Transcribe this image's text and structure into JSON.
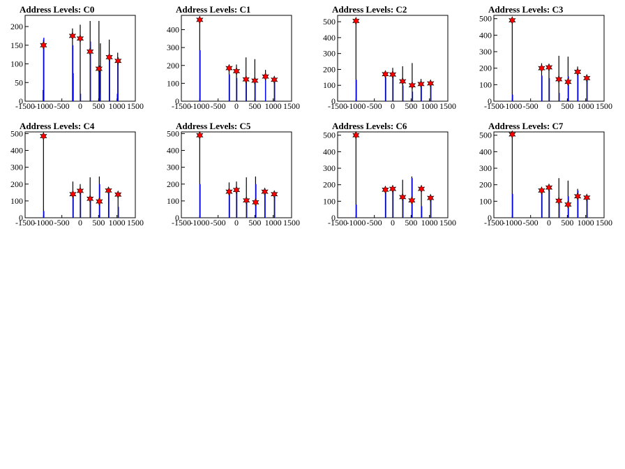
{
  "chart_data": [
    {
      "type": "bar",
      "title": "Address Levels: C0",
      "xlim": [
        -1500,
        1500
      ],
      "ylim": [
        0,
        230
      ],
      "yticks": [
        0,
        50,
        100,
        150,
        200
      ],
      "xticks": [
        -1500,
        -1000,
        -500,
        0,
        500,
        1000,
        1500
      ],
      "series": [
        {
          "name": "black",
          "color": "#000000",
          "bars": [
            [
              -1000,
              165
            ],
            [
              -210,
              195
            ],
            [
              0,
              205
            ],
            [
              270,
              215
            ],
            [
              510,
              215
            ],
            [
              550,
              155
            ],
            [
              790,
              165
            ],
            [
              1020,
              130
            ]
          ]
        },
        {
          "name": "blue",
          "color": "#0000ff",
          "bars": [
            [
              -1010,
              30
            ],
            [
              -990,
              170
            ],
            [
              -200,
              150
            ],
            [
              -190,
              75
            ],
            [
              10,
              20
            ],
            [
              280,
              160
            ],
            [
              530,
              95
            ],
            [
              540,
              20
            ],
            [
              800,
              120
            ],
            [
              1010,
              20
            ],
            [
              1030,
              100
            ]
          ]
        }
      ],
      "peaks": [
        [
          -1000,
          150
        ],
        [
          -210,
          175
        ],
        [
          0,
          168
        ],
        [
          270,
          133
        ],
        [
          510,
          87
        ],
        [
          790,
          118
        ],
        [
          1030,
          108
        ]
      ]
    },
    {
      "type": "bar",
      "title": "Address Levels: C1",
      "xlim": [
        -1500,
        1500
      ],
      "ylim": [
        0,
        480
      ],
      "yticks": [
        0,
        100,
        200,
        300,
        400
      ],
      "xticks": [
        -1500,
        -1000,
        -500,
        0,
        500,
        1000,
        1500
      ],
      "series": [
        {
          "name": "black",
          "color": "#000000",
          "bars": [
            [
              -1000,
              460
            ],
            [
              -200,
              195
            ],
            [
              0,
              205
            ],
            [
              260,
              245
            ],
            [
              500,
              235
            ],
            [
              790,
              175
            ],
            [
              1030,
              130
            ]
          ]
        },
        {
          "name": "blue",
          "color": "#0000ff",
          "bars": [
            [
              -990,
              285
            ],
            [
              -190,
              150
            ],
            [
              10,
              130
            ],
            [
              270,
              110
            ],
            [
              510,
              110
            ],
            [
              790,
              130
            ],
            [
              1040,
              110
            ]
          ]
        }
      ],
      "peaks": [
        [
          -1000,
          455
        ],
        [
          -200,
          185
        ],
        [
          0,
          168
        ],
        [
          260,
          122
        ],
        [
          500,
          115
        ],
        [
          790,
          138
        ],
        [
          1030,
          120
        ]
      ]
    },
    {
      "type": "bar",
      "title": "Address Levels: C2",
      "xlim": [
        -1500,
        1500
      ],
      "ylim": [
        0,
        540
      ],
      "yticks": [
        0,
        100,
        200,
        300,
        400,
        500
      ],
      "xticks": [
        -1500,
        -1000,
        -500,
        0,
        500,
        1000,
        1500
      ],
      "series": [
        {
          "name": "black",
          "color": "#000000",
          "bars": [
            [
              -1000,
              500
            ],
            [
              -200,
              175
            ],
            [
              0,
              210
            ],
            [
              270,
              220
            ],
            [
              530,
              240
            ],
            [
              770,
              140
            ],
            [
              1030,
              120
            ]
          ]
        },
        {
          "name": "blue",
          "color": "#0000ff",
          "bars": [
            [
              -990,
              135
            ],
            [
              -190,
              150
            ],
            [
              10,
              165
            ],
            [
              280,
              100
            ],
            [
              540,
              60
            ],
            [
              780,
              110
            ],
            [
              1040,
              100
            ]
          ]
        }
      ],
      "peaks": [
        [
          -1000,
          505
        ],
        [
          -200,
          170
        ],
        [
          0,
          168
        ],
        [
          270,
          125
        ],
        [
          530,
          100
        ],
        [
          770,
          108
        ],
        [
          1030,
          112
        ]
      ]
    },
    {
      "type": "bar",
      "title": "Address Levels: C3",
      "xlim": [
        -1500,
        1500
      ],
      "ylim": [
        0,
        520
      ],
      "yticks": [
        0,
        100,
        200,
        300,
        400,
        500
      ],
      "xticks": [
        -1500,
        -1000,
        -500,
        0,
        500,
        1000,
        1500
      ],
      "series": [
        {
          "name": "black",
          "color": "#000000",
          "bars": [
            [
              -1000,
              490
            ],
            [
              -200,
              230
            ],
            [
              0,
              220
            ],
            [
              270,
              275
            ],
            [
              520,
              270
            ],
            [
              780,
              210
            ],
            [
              1030,
              150
            ]
          ]
        },
        {
          "name": "blue",
          "color": "#0000ff",
          "bars": [
            [
              -990,
              40
            ],
            [
              -190,
              155
            ],
            [
              10,
              140
            ],
            [
              280,
              50
            ],
            [
              530,
              150
            ],
            [
              790,
              180
            ],
            [
              1040,
              135
            ]
          ]
        }
      ],
      "peaks": [
        [
          -1000,
          490
        ],
        [
          -200,
          200
        ],
        [
          0,
          205
        ],
        [
          270,
          133
        ],
        [
          520,
          117
        ],
        [
          780,
          178
        ],
        [
          1030,
          140
        ]
      ]
    },
    {
      "type": "bar",
      "title": "Address Levels: C4",
      "xlim": [
        -1500,
        1500
      ],
      "ylim": [
        0,
        510
      ],
      "yticks": [
        0,
        100,
        200,
        300,
        400,
        500
      ],
      "xticks": [
        -1500,
        -1000,
        -500,
        0,
        500,
        1000,
        1500
      ],
      "series": [
        {
          "name": "black",
          "color": "#000000",
          "bars": [
            [
              -1000,
              490
            ],
            [
              -200,
              215
            ],
            [
              0,
              200
            ],
            [
              270,
              240
            ],
            [
              520,
              245
            ],
            [
              770,
              180
            ],
            [
              1030,
              150
            ]
          ]
        },
        {
          "name": "blue",
          "color": "#0000ff",
          "bars": [
            [
              -990,
              40
            ],
            [
              -190,
              130
            ],
            [
              10,
              170
            ],
            [
              280,
              110
            ],
            [
              530,
              200
            ],
            [
              780,
              150
            ],
            [
              1040,
              65
            ]
          ]
        }
      ],
      "peaks": [
        [
          -1000,
          485
        ],
        [
          -200,
          140
        ],
        [
          0,
          160
        ],
        [
          270,
          113
        ],
        [
          520,
          97
        ],
        [
          770,
          162
        ],
        [
          1030,
          138
        ]
      ]
    },
    {
      "type": "bar",
      "title": "Address Levels: C5",
      "xlim": [
        -1500,
        1500
      ],
      "ylim": [
        0,
        510
      ],
      "yticks": [
        0,
        100,
        200,
        300,
        400,
        500
      ],
      "xticks": [
        -1500,
        -1000,
        -500,
        0,
        500,
        1000,
        1500
      ],
      "series": [
        {
          "name": "black",
          "color": "#000000",
          "bars": [
            [
              -1000,
              490
            ],
            [
              -200,
              210
            ],
            [
              0,
              215
            ],
            [
              270,
              240
            ],
            [
              520,
              245
            ],
            [
              770,
              175
            ],
            [
              1030,
              150
            ]
          ]
        },
        {
          "name": "blue",
          "color": "#0000ff",
          "bars": [
            [
              -990,
              200
            ],
            [
              -190,
              150
            ],
            [
              10,
              180
            ],
            [
              280,
              110
            ],
            [
              530,
              200
            ],
            [
              780,
              145
            ],
            [
              1040,
              130
            ]
          ]
        }
      ],
      "peaks": [
        [
          -1000,
          490
        ],
        [
          -200,
          155
        ],
        [
          0,
          165
        ],
        [
          270,
          103
        ],
        [
          520,
          92
        ],
        [
          770,
          155
        ],
        [
          1030,
          140
        ]
      ]
    },
    {
      "type": "bar",
      "title": "Address Levels: C6",
      "xlim": [
        -1500,
        1500
      ],
      "ylim": [
        0,
        520
      ],
      "yticks": [
        0,
        100,
        200,
        300,
        400,
        500
      ],
      "xticks": [
        -1500,
        -1000,
        -500,
        0,
        500,
        1000,
        1500
      ],
      "series": [
        {
          "name": "black",
          "color": "#000000",
          "bars": [
            [
              -1000,
              500
            ],
            [
              -200,
              175
            ],
            [
              0,
              180
            ],
            [
              270,
              230
            ],
            [
              520,
              250
            ],
            [
              780,
              180
            ],
            [
              1030,
              125
            ]
          ]
        },
        {
          "name": "blue",
          "color": "#0000ff",
          "bars": [
            [
              -990,
              80
            ],
            [
              -190,
              160
            ],
            [
              10,
              170
            ],
            [
              280,
              110
            ],
            [
              530,
              240
            ],
            [
              790,
              70
            ],
            [
              1040,
              110
            ]
          ]
        }
      ],
      "peaks": [
        [
          -1000,
          500
        ],
        [
          -200,
          170
        ],
        [
          0,
          175
        ],
        [
          270,
          125
        ],
        [
          520,
          105
        ],
        [
          780,
          175
        ],
        [
          1030,
          120
        ]
      ]
    },
    {
      "type": "bar",
      "title": "Address Levels: C7",
      "xlim": [
        -1500,
        1500
      ],
      "ylim": [
        0,
        520
      ],
      "yticks": [
        0,
        100,
        200,
        300,
        400,
        500
      ],
      "xticks": [
        -1500,
        -1000,
        -500,
        0,
        500,
        1000,
        1500
      ],
      "series": [
        {
          "name": "black",
          "color": "#000000",
          "bars": [
            [
              -1000,
              510
            ],
            [
              -200,
              175
            ],
            [
              0,
              190
            ],
            [
              270,
              240
            ],
            [
              520,
              225
            ],
            [
              780,
              175
            ],
            [
              1030,
              130
            ]
          ]
        },
        {
          "name": "blue",
          "color": "#0000ff",
          "bars": [
            [
              -990,
              145
            ],
            [
              -190,
              155
            ],
            [
              10,
              165
            ],
            [
              280,
              110
            ],
            [
              530,
              130
            ],
            [
              790,
              165
            ],
            [
              1040,
              110
            ]
          ]
        }
      ],
      "peaks": [
        [
          -1000,
          505
        ],
        [
          -200,
          165
        ],
        [
          0,
          183
        ],
        [
          270,
          103
        ],
        [
          520,
          80
        ],
        [
          780,
          130
        ],
        [
          1030,
          122
        ]
      ]
    }
  ]
}
